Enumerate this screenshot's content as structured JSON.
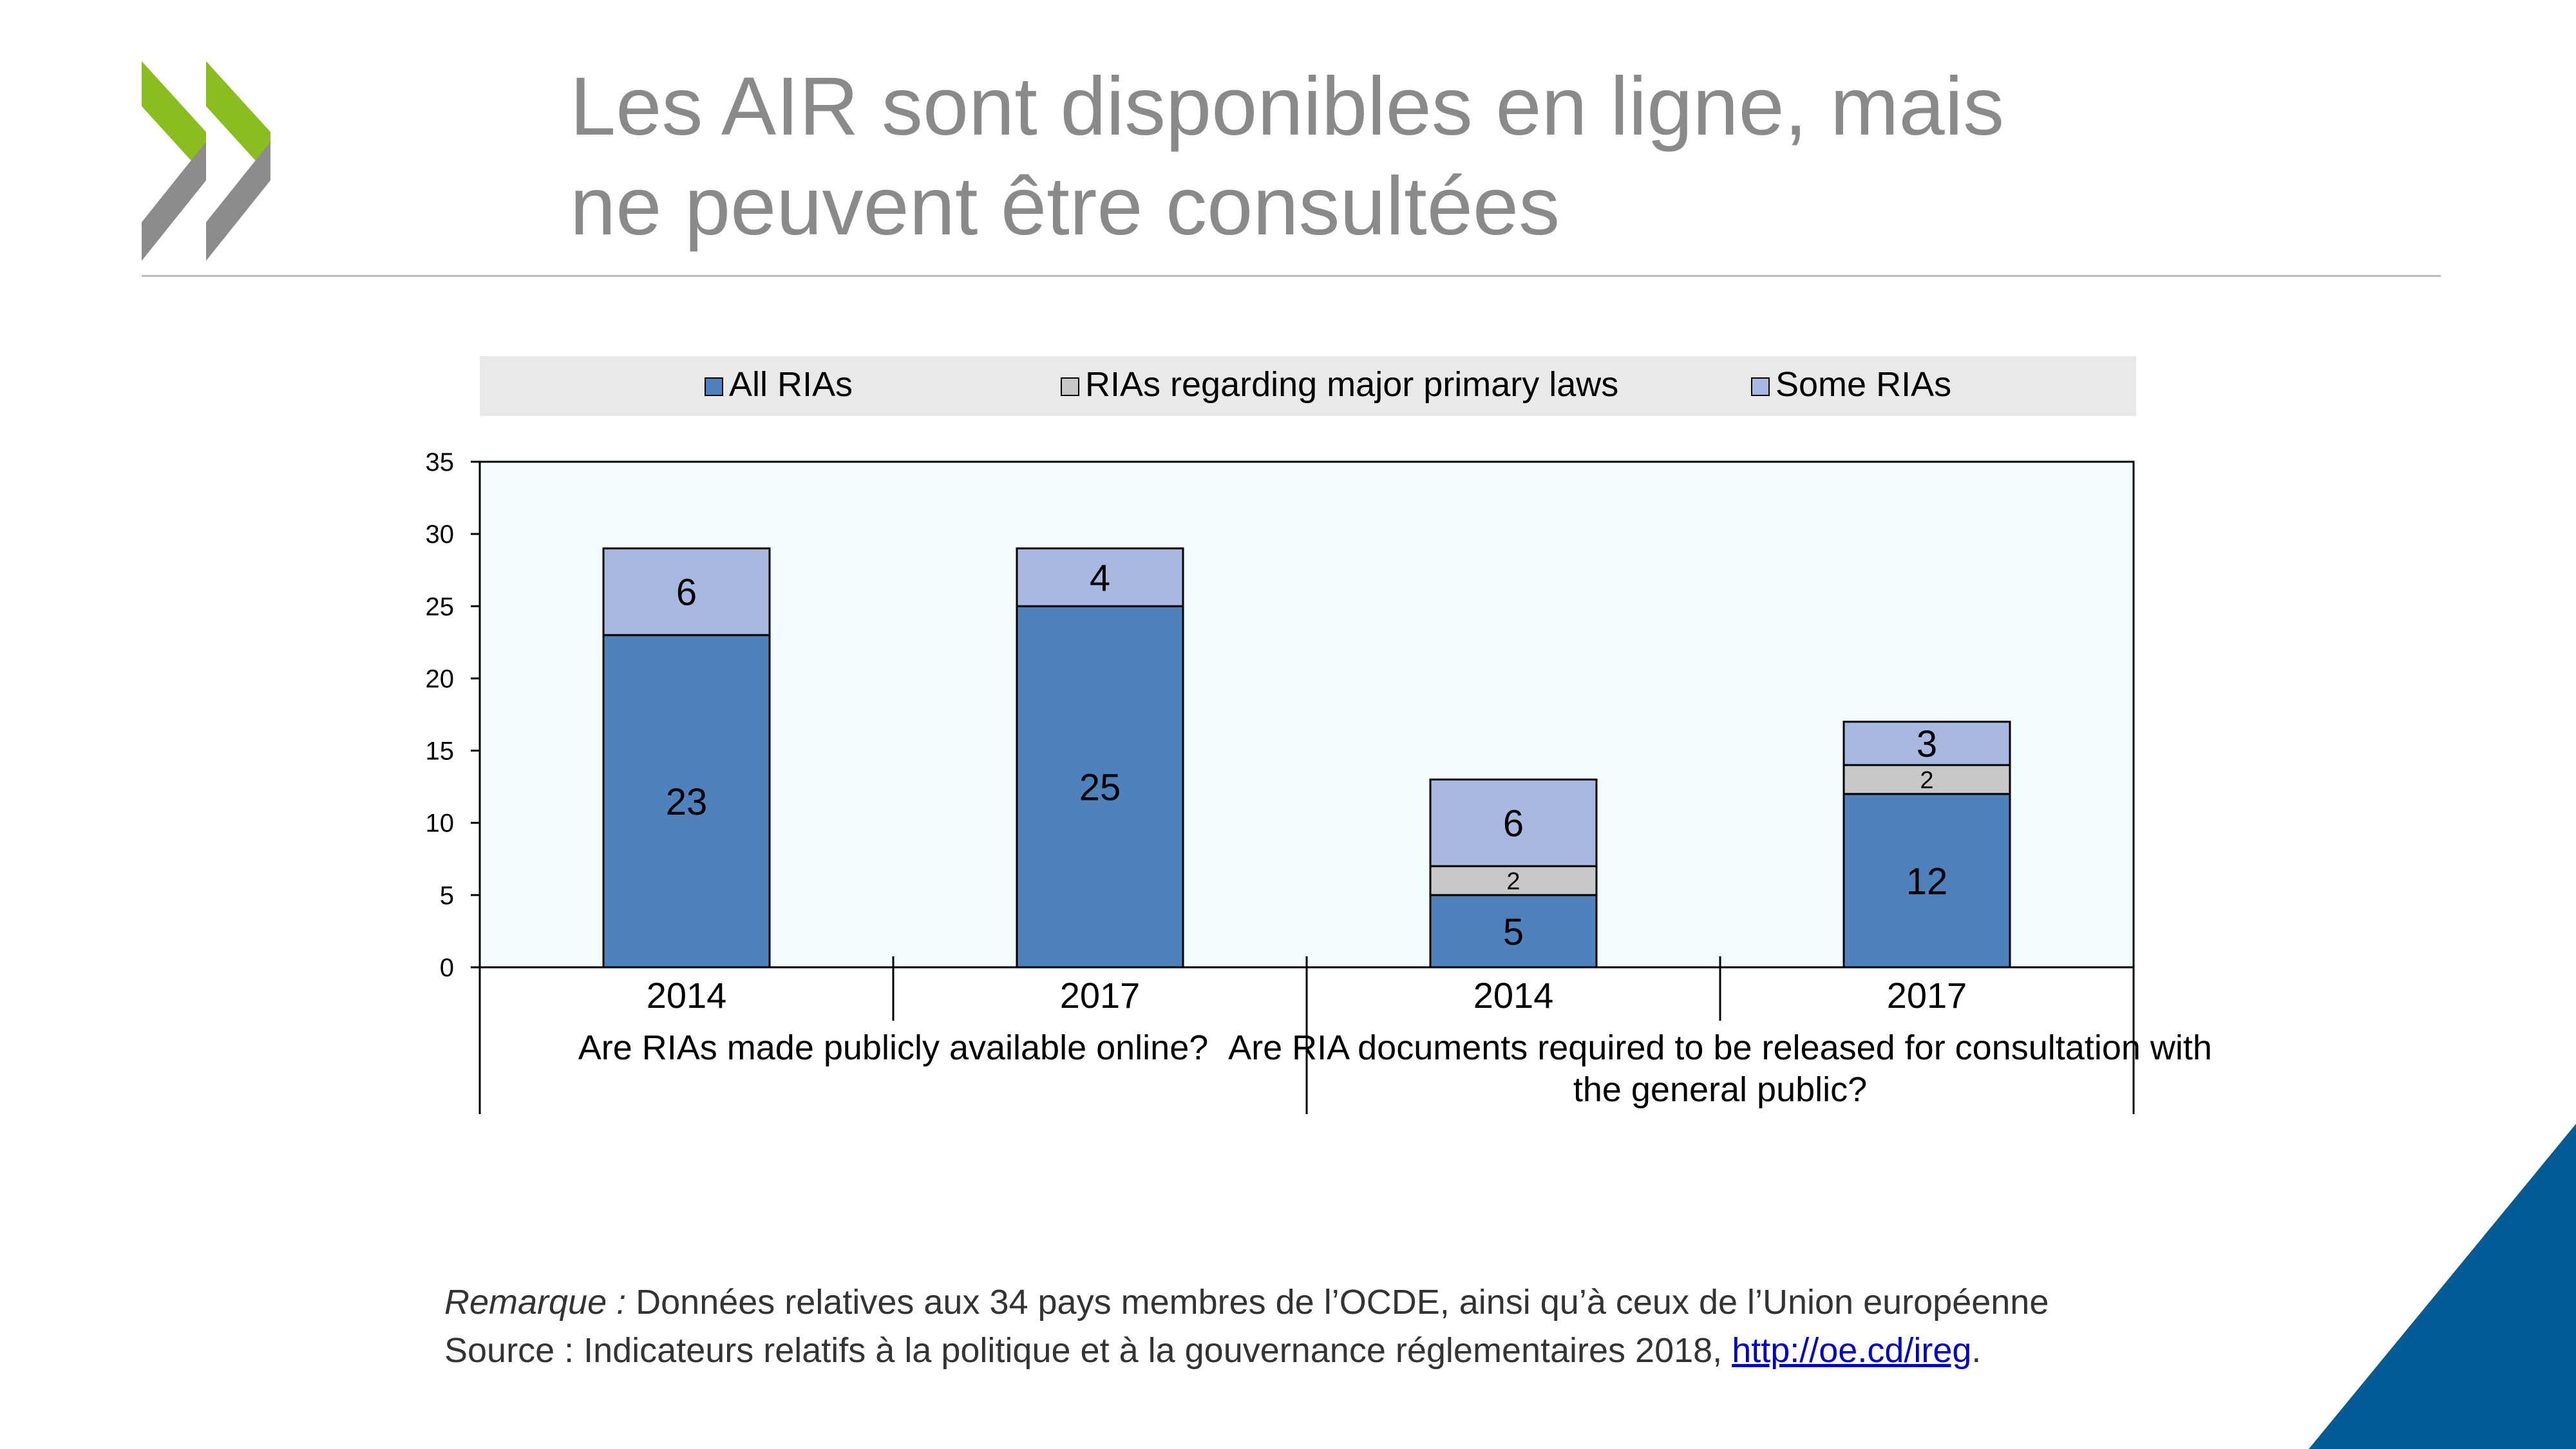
{
  "slide": {
    "title_line1": "Les AIR sont disponibles en ligne, mais",
    "title_line2": "ne peuvent être consultées",
    "logo_icon": "oecd-double-chevron-icon",
    "colors": {
      "logo_green": "#8cbd1e",
      "logo_grey": "#8c8c8c",
      "corner_blue": "#005b96"
    }
  },
  "notes": {
    "remark_label": "Remarque :",
    "remark_text": " Données relatives aux 34 pays membres de l’OCDE, ainsi qu’à ceux de l’Union européenne",
    "source_text": "Source : Indicateurs relatifs à la politique et à la gouvernance réglementaires 2018, ",
    "source_link": "http://oe.cd/ireg",
    "source_end": "."
  },
  "chart_data": {
    "type": "bar",
    "stacked": true,
    "legend": {
      "placement": "top",
      "entries": [
        "All RIAs",
        "RIAs regarding major primary laws",
        "Some RIAs"
      ]
    },
    "ylim": [
      0,
      35
    ],
    "yticks": [
      0,
      5,
      10,
      15,
      20,
      25,
      30,
      35
    ],
    "groups": [
      {
        "label": "Are RIAs made publicly available online?",
        "categories": [
          "2014",
          "2017"
        ]
      },
      {
        "label": "Are RIA documents required to be released for consultation with the general public?",
        "categories": [
          "2014",
          "2017"
        ]
      }
    ],
    "categories": [
      "2014",
      "2017",
      "2014",
      "2017"
    ],
    "series": [
      {
        "name": "All RIAs",
        "color": "#4f81bd",
        "values": [
          23,
          25,
          5,
          12
        ]
      },
      {
        "name": "RIAs regarding major primary laws",
        "color": "#c8c8c8",
        "values": [
          0,
          0,
          2,
          2
        ]
      },
      {
        "name": "Some RIAs",
        "color": "#a8b8e0",
        "values": [
          6,
          4,
          6,
          3
        ]
      }
    ],
    "colors": {
      "plot_background": "#f2fcfd",
      "legend_background": "#e9e9e9"
    },
    "grid": false
  }
}
